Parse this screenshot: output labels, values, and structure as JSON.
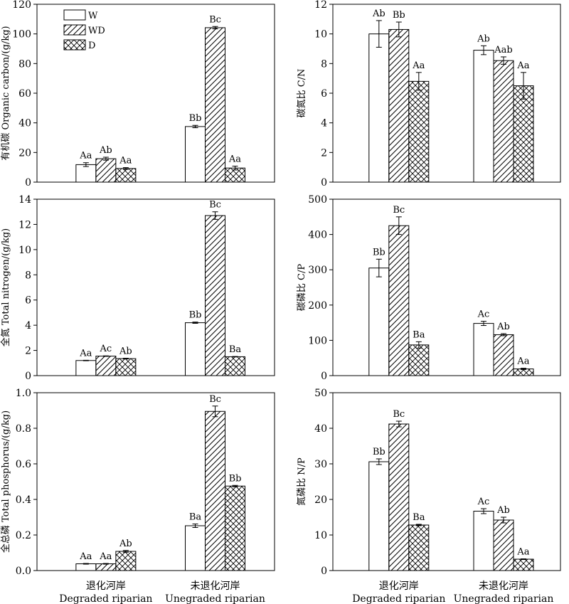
{
  "groups": [
    {
      "cn": "退化河岸",
      "en": "Degraded riparian"
    },
    {
      "cn": "未退化河岸",
      "en": "Unegraded  riparian"
    }
  ],
  "legend": [
    "W",
    "WD",
    "D"
  ],
  "chart_data": [
    {
      "type": "bar",
      "ylabel": "有机碳 Organic carbon/(g/kg)",
      "ylim": [
        0,
        120
      ],
      "yticks": [
        "0",
        "20",
        "40",
        "60",
        "80",
        "100",
        "120"
      ],
      "categories": [
        "Degraded riparian",
        "Unegraded  riparian"
      ],
      "series": [
        {
          "name": "W",
          "values": [
            11.8,
            37.5
          ],
          "errors": [
            1.3,
            0.8
          ],
          "labels": [
            "Aa",
            "Bb"
          ]
        },
        {
          "name": "WD",
          "values": [
            15.8,
            104.2
          ],
          "errors": [
            1.0,
            0.8
          ],
          "labels": [
            "Ab",
            "Bc"
          ]
        },
        {
          "name": "D",
          "values": [
            9.2,
            9.5
          ],
          "errors": [
            0.6,
            1.3
          ],
          "labels": [
            "Aa",
            "Aa"
          ]
        }
      ],
      "legend": "top-left"
    },
    {
      "type": "bar",
      "ylabel": "碳氮比 C/N",
      "ylim": [
        0,
        12
      ],
      "yticks": [
        "0",
        "2",
        "4",
        "6",
        "8",
        "10",
        "12"
      ],
      "categories": [
        "Degraded riparian",
        "Unegraded  riparian"
      ],
      "series": [
        {
          "name": "W",
          "values": [
            10.0,
            8.9
          ],
          "errors": [
            0.9,
            0.3
          ],
          "labels": [
            "Ab",
            "Ab"
          ]
        },
        {
          "name": "WD",
          "values": [
            10.3,
            8.2
          ],
          "errors": [
            0.5,
            0.25
          ],
          "labels": [
            "Bb",
            "Aab"
          ]
        },
        {
          "name": "D",
          "values": [
            6.8,
            6.5
          ],
          "errors": [
            0.6,
            0.9
          ],
          "labels": [
            "Aa",
            "Aa"
          ]
        }
      ]
    },
    {
      "type": "bar",
      "ylabel": "全氮 Total nitrogen/(g/kg)",
      "ylim": [
        0,
        14
      ],
      "yticks": [
        "0",
        "2",
        "4",
        "6",
        "8",
        "10",
        "12",
        "14"
      ],
      "categories": [
        "Degraded riparian",
        "Unegraded  riparian"
      ],
      "series": [
        {
          "name": "W",
          "values": [
            1.2,
            4.2
          ],
          "errors": [
            0.02,
            0.05
          ],
          "labels": [
            "Aa",
            "Bb"
          ]
        },
        {
          "name": "WD",
          "values": [
            1.55,
            12.7
          ],
          "errors": [
            0.02,
            0.3
          ],
          "labels": [
            "Ac",
            "Bc"
          ]
        },
        {
          "name": "D",
          "values": [
            1.35,
            1.5
          ],
          "errors": [
            0.03,
            0.02
          ],
          "labels": [
            "Ab",
            "Ba"
          ]
        }
      ]
    },
    {
      "type": "bar",
      "ylabel": "碳磷比 C/P",
      "ylim": [
        0,
        500
      ],
      "yticks": [
        "0",
        "100",
        "200",
        "300",
        "400",
        "500"
      ],
      "categories": [
        "Degraded riparian",
        "Unegraded  riparian"
      ],
      "series": [
        {
          "name": "W",
          "values": [
            305,
            148
          ],
          "errors": [
            25,
            6
          ],
          "labels": [
            "Bb",
            "Ac"
          ]
        },
        {
          "name": "WD",
          "values": [
            425,
            116
          ],
          "errors": [
            25,
            3
          ],
          "labels": [
            "Bc",
            "Ab"
          ]
        },
        {
          "name": "D",
          "values": [
            87,
            19
          ],
          "errors": [
            9,
            2
          ],
          "labels": [
            "Ba",
            "Aa"
          ]
        }
      ]
    },
    {
      "type": "bar",
      "ylabel": "全总磷 Total phosphorus/(g/kg)",
      "ylim": [
        0,
        1.0
      ],
      "yticks": [
        "0.0",
        "0.2",
        "0.4",
        "0.6",
        "0.8",
        "1.0"
      ],
      "categories": [
        "Degraded riparian",
        "Unegraded  riparian"
      ],
      "series": [
        {
          "name": "W",
          "values": [
            0.038,
            0.252
          ],
          "errors": [
            0.002,
            0.01
          ],
          "labels": [
            "Aa",
            "Ba"
          ]
        },
        {
          "name": "WD",
          "values": [
            0.038,
            0.895
          ],
          "errors": [
            0.002,
            0.03
          ],
          "labels": [
            "Aa",
            "Bc"
          ]
        },
        {
          "name": "D",
          "values": [
            0.108,
            0.475
          ],
          "errors": [
            0.005,
            0.004
          ],
          "labels": [
            "Ab",
            "Bb"
          ]
        }
      ]
    },
    {
      "type": "bar",
      "ylabel": "氮磷比 N/P",
      "ylim": [
        0,
        50
      ],
      "yticks": [
        "0",
        "10",
        "20",
        "30",
        "40",
        "50"
      ],
      "categories": [
        "Degraded riparian",
        "Unegraded  riparian"
      ],
      "series": [
        {
          "name": "W",
          "values": [
            30.6,
            16.7
          ],
          "errors": [
            0.8,
            0.7
          ],
          "labels": [
            "Bb",
            "Ac"
          ]
        },
        {
          "name": "WD",
          "values": [
            41.2,
            14.2
          ],
          "errors": [
            0.8,
            0.8
          ],
          "labels": [
            "Bc",
            "Ab"
          ]
        },
        {
          "name": "D",
          "values": [
            12.8,
            3.2
          ],
          "errors": [
            0.2,
            0.1
          ],
          "labels": [
            "Ba",
            "Aa"
          ]
        }
      ]
    }
  ]
}
